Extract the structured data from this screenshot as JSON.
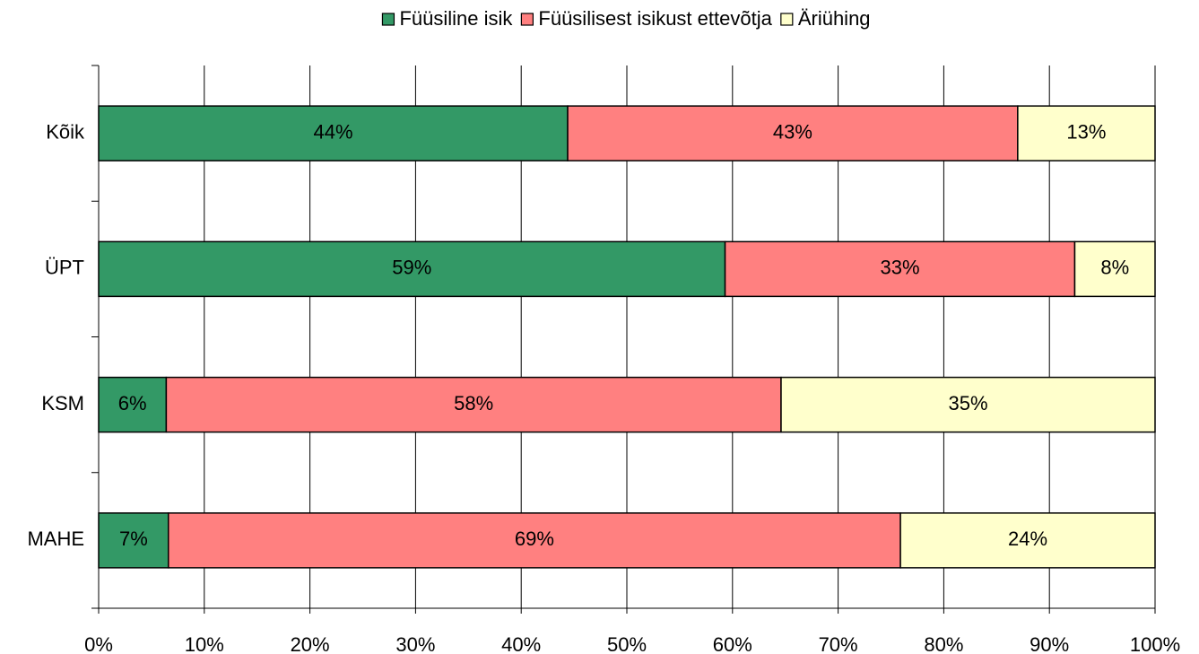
{
  "chart_data": {
    "type": "stacked_barh",
    "categories": [
      "Kõik",
      "ÜPT",
      "KSM",
      "MAHE"
    ],
    "series": [
      {
        "name": "Füüsiline isik",
        "color": "#339966",
        "values": [
          44.4,
          59.3,
          6.4,
          6.6
        ],
        "value_labels": [
          "44%",
          "59%",
          "6%",
          "7%"
        ]
      },
      {
        "name": "Füüsilisest isikust ettevõtja",
        "color": "#ff8080",
        "values": [
          42.6,
          33.1,
          58.2,
          69.3
        ],
        "value_labels": [
          "43%",
          "33%",
          "58%",
          "69%"
        ]
      },
      {
        "name": "Äriühing",
        "color": "#ffffcc",
        "values": [
          13.0,
          7.6,
          35.4,
          24.1
        ],
        "value_labels": [
          "13%",
          "8%",
          "35%",
          "24%"
        ]
      }
    ],
    "xlim": [
      0,
      100
    ],
    "xticks": [
      {
        "value": 0,
        "label": "0%"
      },
      {
        "value": 10,
        "label": "10%"
      },
      {
        "value": 20,
        "label": "20%"
      },
      {
        "value": 30,
        "label": "30%"
      },
      {
        "value": 40,
        "label": "40%"
      },
      {
        "value": 50,
        "label": "50%"
      },
      {
        "value": 60,
        "label": "60%"
      },
      {
        "value": 70,
        "label": "70%"
      },
      {
        "value": 80,
        "label": "80%"
      },
      {
        "value": 90,
        "label": "90%"
      },
      {
        "value": 100,
        "label": "100%"
      }
    ],
    "grid": true,
    "legend": "top"
  }
}
